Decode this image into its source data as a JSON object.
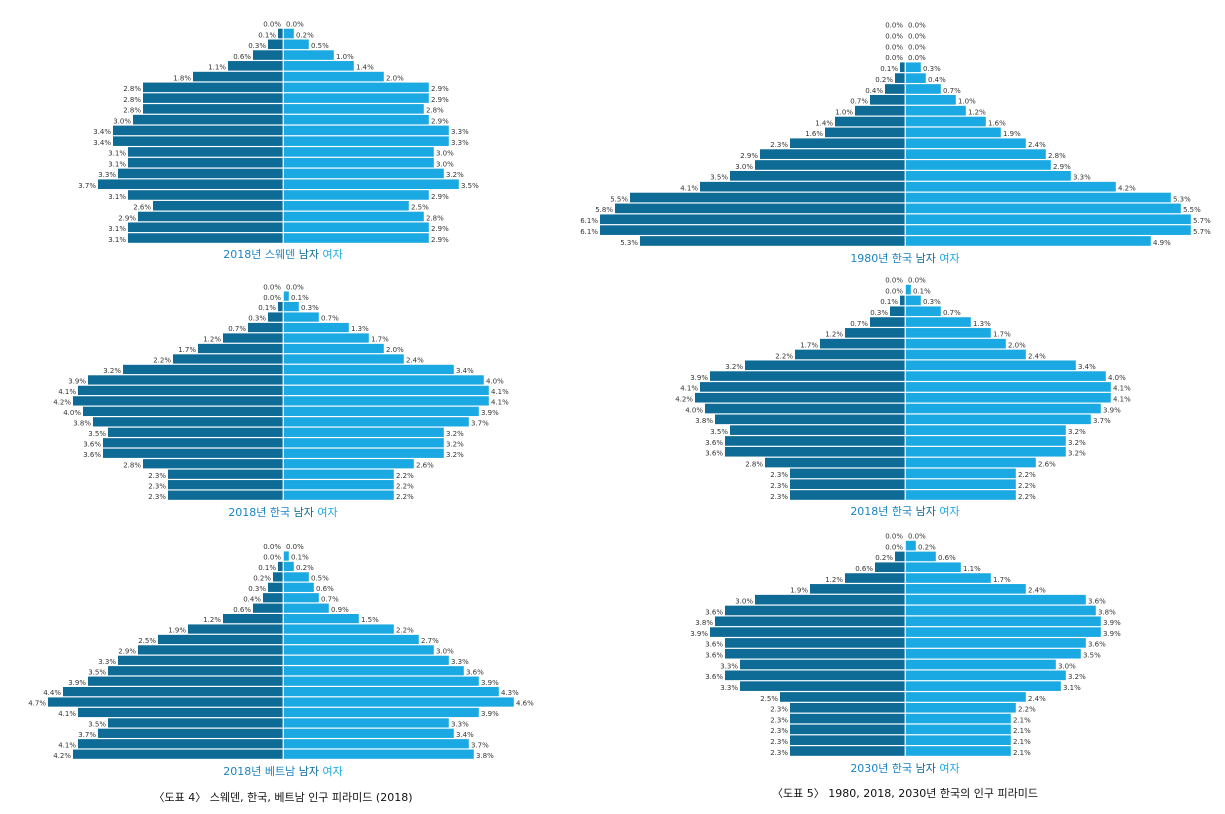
{
  "colors": {
    "male": "#0d6b96",
    "female": "#1aa9e2",
    "title_text": "#1a84c4"
  },
  "chart_data": [
    {
      "type": "bar",
      "title": "2018년 스웨덴",
      "legend": [
        "남자",
        "여자"
      ],
      "series": [
        {
          "name": "남자",
          "values": [
            0.0,
            0.1,
            0.3,
            0.6,
            1.1,
            1.8,
            2.8,
            2.8,
            2.8,
            3.0,
            3.4,
            3.4,
            3.1,
            3.1,
            3.3,
            3.7,
            3.1,
            2.6,
            2.9,
            3.1,
            3.1
          ]
        },
        {
          "name": "여자",
          "values": [
            0.0,
            0.2,
            0.5,
            1.0,
            1.4,
            2.0,
            2.9,
            2.9,
            2.8,
            2.9,
            3.3,
            3.3,
            3.0,
            3.0,
            3.2,
            3.5,
            2.9,
            2.5,
            2.8,
            2.9,
            2.9
          ]
        }
      ]
    },
    {
      "type": "bar",
      "title": "2018년 한국",
      "legend": [
        "남자",
        "여자"
      ],
      "series": [
        {
          "name": "남자",
          "values": [
            0.0,
            0.0,
            0.1,
            0.3,
            0.7,
            1.2,
            1.7,
            2.2,
            3.2,
            3.9,
            4.1,
            4.2,
            4.0,
            3.8,
            3.5,
            3.6,
            3.6,
            2.8,
            2.3,
            2.3,
            2.3
          ]
        },
        {
          "name": "여자",
          "values": [
            0.0,
            0.1,
            0.3,
            0.7,
            1.3,
            1.7,
            2.0,
            2.4,
            3.4,
            4.0,
            4.1,
            4.1,
            3.9,
            3.7,
            3.2,
            3.2,
            3.2,
            2.6,
            2.2,
            2.2,
            2.2
          ]
        }
      ]
    },
    {
      "type": "bar",
      "title": "2018년 베트남",
      "legend": [
        "남자",
        "여자"
      ],
      "series": [
        {
          "name": "남자",
          "values": [
            0.0,
            0.0,
            0.1,
            0.2,
            0.3,
            0.4,
            0.6,
            1.2,
            1.9,
            2.5,
            2.9,
            3.3,
            3.5,
            3.9,
            4.4,
            4.7,
            4.1,
            3.5,
            3.7,
            4.1,
            4.2
          ]
        },
        {
          "name": "여자",
          "values": [
            0.0,
            0.1,
            0.2,
            0.5,
            0.6,
            0.7,
            0.9,
            1.5,
            2.2,
            2.7,
            3.0,
            3.3,
            3.6,
            3.9,
            4.3,
            4.6,
            3.9,
            3.3,
            3.4,
            3.7,
            3.8
          ]
        }
      ]
    },
    {
      "type": "bar",
      "title": "1980년 한국",
      "legend": [
        "남자",
        "여자"
      ],
      "series": [
        {
          "name": "남자",
          "values": [
            0.0,
            0.0,
            0.0,
            0.0,
            0.1,
            0.2,
            0.4,
            0.7,
            1.0,
            1.4,
            1.6,
            2.3,
            2.9,
            3.0,
            3.5,
            4.1,
            5.5,
            5.8,
            6.1,
            6.1,
            5.3
          ]
        },
        {
          "name": "여자",
          "values": [
            0.0,
            0.0,
            0.0,
            0.0,
            0.3,
            0.4,
            0.7,
            1.0,
            1.2,
            1.6,
            1.9,
            2.4,
            2.8,
            2.9,
            3.3,
            4.2,
            5.3,
            5.5,
            5.7,
            5.7,
            4.9
          ]
        }
      ]
    },
    {
      "type": "bar",
      "title": "2018년 한국",
      "legend": [
        "남자",
        "여자"
      ],
      "series": [
        {
          "name": "남자",
          "values": [
            0.0,
            0.0,
            0.1,
            0.3,
            0.7,
            1.2,
            1.7,
            2.2,
            3.2,
            3.9,
            4.1,
            4.2,
            4.0,
            3.8,
            3.5,
            3.6,
            3.6,
            2.8,
            2.3,
            2.3,
            2.3
          ]
        },
        {
          "name": "여자",
          "values": [
            0.0,
            0.1,
            0.3,
            0.7,
            1.3,
            1.7,
            2.0,
            2.4,
            3.4,
            4.0,
            4.1,
            4.1,
            3.9,
            3.7,
            3.2,
            3.2,
            3.2,
            2.6,
            2.2,
            2.2,
            2.2
          ]
        }
      ]
    },
    {
      "type": "bar",
      "title": "2030년 한국",
      "legend": [
        "남자",
        "여자"
      ],
      "series": [
        {
          "name": "남자",
          "values": [
            0.0,
            0.0,
            0.2,
            0.6,
            1.2,
            1.9,
            3.0,
            3.6,
            3.8,
            3.9,
            3.6,
            3.6,
            3.3,
            3.6,
            3.3,
            2.5,
            2.3,
            2.3,
            2.3,
            2.3,
            2.3
          ]
        },
        {
          "name": "여자",
          "values": [
            0.0,
            0.2,
            0.6,
            1.1,
            1.7,
            2.4,
            3.6,
            3.8,
            3.9,
            3.9,
            3.6,
            3.5,
            3.0,
            3.2,
            3.1,
            2.4,
            2.2,
            2.1,
            2.1,
            2.1,
            2.1
          ]
        }
      ]
    }
  ],
  "captions": {
    "left": "〈도표 4〉 스웨덴, 한국, 베트남 인구 피라미드 (2018)",
    "right": "〈도표 5〉 1980, 2018, 2030년 한국의 인구 피라미드"
  }
}
